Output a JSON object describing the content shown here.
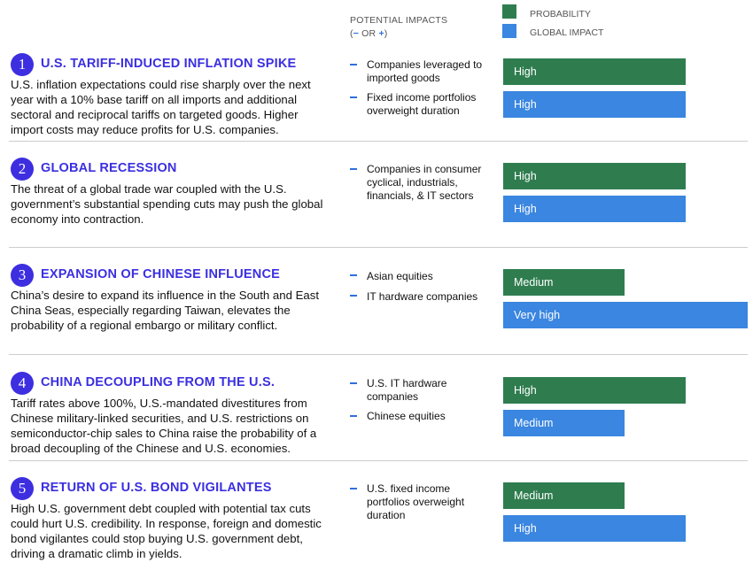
{
  "header": {
    "impacts_title": "POTENTIAL IMPACTS",
    "note_open": "(",
    "minus": "−",
    "or": "OR",
    "plus": "+",
    "note_close": ")"
  },
  "legend": [
    "PROBABILITY",
    "GLOBAL IMPACT"
  ],
  "risks": [
    {
      "number": "1",
      "title": "U.S. TARIFF-INDUCED INFLATION SPIKE",
      "description": "U.S. inflation expectations could rise sharply over the next year with a 10% base tariff on all imports and additional sectoral and reciprocal tariffs on targeted goods. Higher import costs may reduce profits for U.S. companies.",
      "impacts": [
        "Companies leveraged to imported goods",
        "Fixed income portfolios overweight duration"
      ],
      "probability": "High",
      "global_impact": "High"
    },
    {
      "number": "2",
      "title": "GLOBAL RECESSION",
      "description": "The threat of a global trade war coupled with the U.S. government’s substantial spending cuts may push the global economy into contraction.",
      "impacts": [
        "Companies in consumer cyclical, industrials, financials, & IT sectors"
      ],
      "probability": "High",
      "global_impact": "High"
    },
    {
      "number": "3",
      "title": "EXPANSION OF CHINESE INFLUENCE",
      "description": "China’s desire to expand its influence in the South and East China Seas, especially regarding Taiwan, elevates the probability of a regional embargo or military conflict.",
      "impacts": [
        "Asian equities",
        "IT hardware companies"
      ],
      "probability": "Medium",
      "global_impact": "Very high"
    },
    {
      "number": "4",
      "title": "CHINA DECOUPLING FROM THE U.S.",
      "description": "Tariff rates above 100%, U.S.-mandated divestitures from Chinese military-linked securities, and U.S. restrictions on semiconductor-chip sales to China raise the probability of a broad decoupling of the Chinese and U.S. economies.",
      "impacts": [
        "U.S. IT hardware companies",
        "Chinese equities"
      ],
      "probability": "High",
      "global_impact": "Medium"
    },
    {
      "number": "5",
      "title": "RETURN OF U.S. BOND VIGILANTES",
      "description": "High U.S. government debt coupled with potential tax cuts could hurt U.S. credibility. In response, foreign and domestic bond vigilantes could stop buying U.S. government debt, driving a dramatic climb in yields.",
      "impacts": [
        "U.S. fixed income portfolios overweight duration"
      ],
      "probability": "Medium",
      "global_impact": "High"
    }
  ]
}
